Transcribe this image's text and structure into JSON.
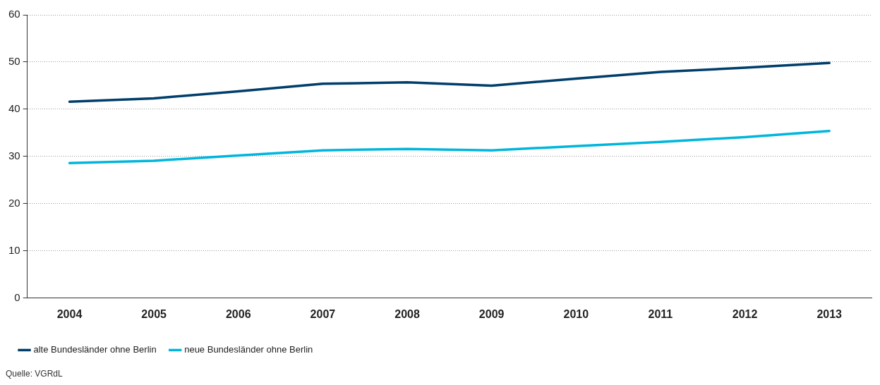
{
  "chart_data": {
    "type": "line",
    "categories": [
      "2004",
      "2005",
      "2006",
      "2007",
      "2008",
      "2009",
      "2010",
      "2011",
      "2012",
      "2013"
    ],
    "series": [
      {
        "name": "alte Bundesländer ohne Berlin",
        "color": "#003e6b",
        "values": [
          41.6,
          42.3,
          43.8,
          45.4,
          45.7,
          45.0,
          46.5,
          47.9,
          48.8,
          49.8
        ]
      },
      {
        "name": "neue Bundesländer ohne Berlin",
        "color": "#00b6dc",
        "values": [
          28.6,
          29.1,
          30.2,
          31.3,
          31.6,
          31.3,
          32.2,
          33.1,
          34.1,
          35.4
        ]
      }
    ],
    "ylim": [
      0,
      60
    ],
    "yticks": [
      0,
      10,
      20,
      30,
      40,
      50,
      60
    ],
    "grid": "y",
    "legend": "bottom left",
    "marker": "none",
    "line_style": "solid",
    "annotations": [
      "Quelle: VGRdL"
    ]
  }
}
